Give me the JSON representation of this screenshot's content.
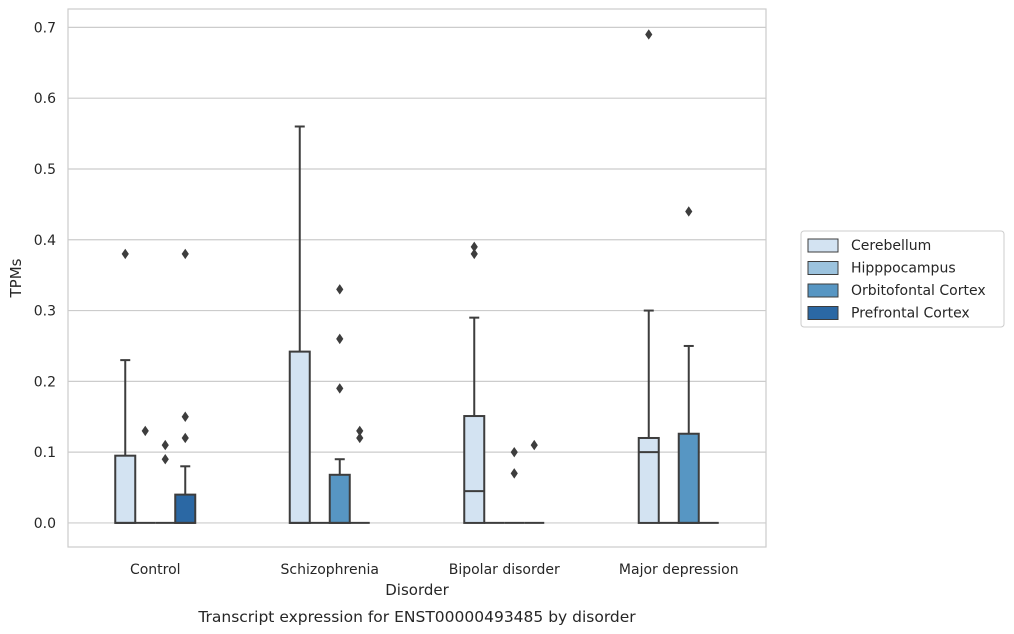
{
  "chart_data": {
    "type": "box",
    "caption": "Transcript expression for ENST00000493485 by disorder",
    "xlabel": "Disorder",
    "ylabel": "TPMs",
    "ylim": [
      -0.034,
      0.726
    ],
    "yticks": [
      "0.0",
      "0.1",
      "0.2",
      "0.3",
      "0.4",
      "0.5",
      "0.6",
      "0.7"
    ],
    "grid": "horizontal",
    "legend_position": "right",
    "categories": [
      "Control",
      "Schizophrenia",
      "Bipolar disorder",
      "Major depression"
    ],
    "series": [
      {
        "name": "Cerebellum",
        "color": "#d3e3f2",
        "boxes": [
          {
            "q1": 0,
            "median": 0,
            "q3": 0.095,
            "whisker_low": 0,
            "whisker_high": 0.23,
            "outliers": [
              0.38
            ]
          },
          {
            "q1": 0,
            "median": 0,
            "q3": 0.242,
            "whisker_low": 0,
            "whisker_high": 0.56,
            "outliers": []
          },
          {
            "q1": 0,
            "median": 0.045,
            "q3": 0.151,
            "whisker_low": 0,
            "whisker_high": 0.29,
            "outliers": [
              0.38,
              0.39
            ]
          },
          {
            "q1": 0,
            "median": 0.1,
            "q3": 0.12,
            "whisker_low": 0,
            "whisker_high": 0.3,
            "outliers": [
              0.69
            ]
          }
        ]
      },
      {
        "name": "Hipppocampus",
        "color": "#9cc3de",
        "boxes": [
          {
            "q1": 0,
            "median": 0,
            "q3": 0,
            "whisker_low": 0,
            "whisker_high": 0,
            "outliers": [
              0.13
            ]
          },
          {
            "q1": 0,
            "median": 0,
            "q3": 0,
            "whisker_low": 0,
            "whisker_high": 0,
            "outliers": []
          },
          {
            "q1": 0,
            "median": 0,
            "q3": 0,
            "whisker_low": 0,
            "whisker_high": 0,
            "outliers": []
          },
          {
            "q1": 0,
            "median": 0,
            "q3": 0,
            "whisker_low": 0,
            "whisker_high": 0,
            "outliers": []
          }
        ]
      },
      {
        "name": "Orbitofontal Cortex",
        "color": "#5796c3",
        "boxes": [
          {
            "q1": 0,
            "median": 0,
            "q3": 0,
            "whisker_low": 0,
            "whisker_high": 0,
            "outliers": [
              0.09,
              0.11
            ]
          },
          {
            "q1": 0,
            "median": 0,
            "q3": 0.068,
            "whisker_low": 0,
            "whisker_high": 0.09,
            "outliers": [
              0.19,
              0.26,
              0.33
            ]
          },
          {
            "q1": 0,
            "median": 0,
            "q3": 0,
            "whisker_low": 0,
            "whisker_high": 0,
            "outliers": [
              0.07,
              0.1
            ]
          },
          {
            "q1": 0,
            "median": 0,
            "q3": 0.126,
            "whisker_low": 0,
            "whisker_high": 0.25,
            "outliers": [
              0.44
            ]
          }
        ]
      },
      {
        "name": "Prefrontal Cortex",
        "color": "#2b68a4",
        "boxes": [
          {
            "q1": 0,
            "median": 0,
            "q3": 0.04,
            "whisker_low": 0,
            "whisker_high": 0.08,
            "outliers": [
              0.12,
              0.15,
              0.38
            ]
          },
          {
            "q1": 0,
            "median": 0,
            "q3": 0,
            "whisker_low": 0,
            "whisker_high": 0,
            "outliers": [
              0.12,
              0.13
            ]
          },
          {
            "q1": 0,
            "median": 0,
            "q3": 0,
            "whisker_low": 0,
            "whisker_high": 0,
            "outliers": [
              0.11
            ]
          },
          {
            "q1": 0,
            "median": 0,
            "q3": 0,
            "whisker_low": 0,
            "whisker_high": 0,
            "outliers": []
          }
        ]
      }
    ]
  }
}
